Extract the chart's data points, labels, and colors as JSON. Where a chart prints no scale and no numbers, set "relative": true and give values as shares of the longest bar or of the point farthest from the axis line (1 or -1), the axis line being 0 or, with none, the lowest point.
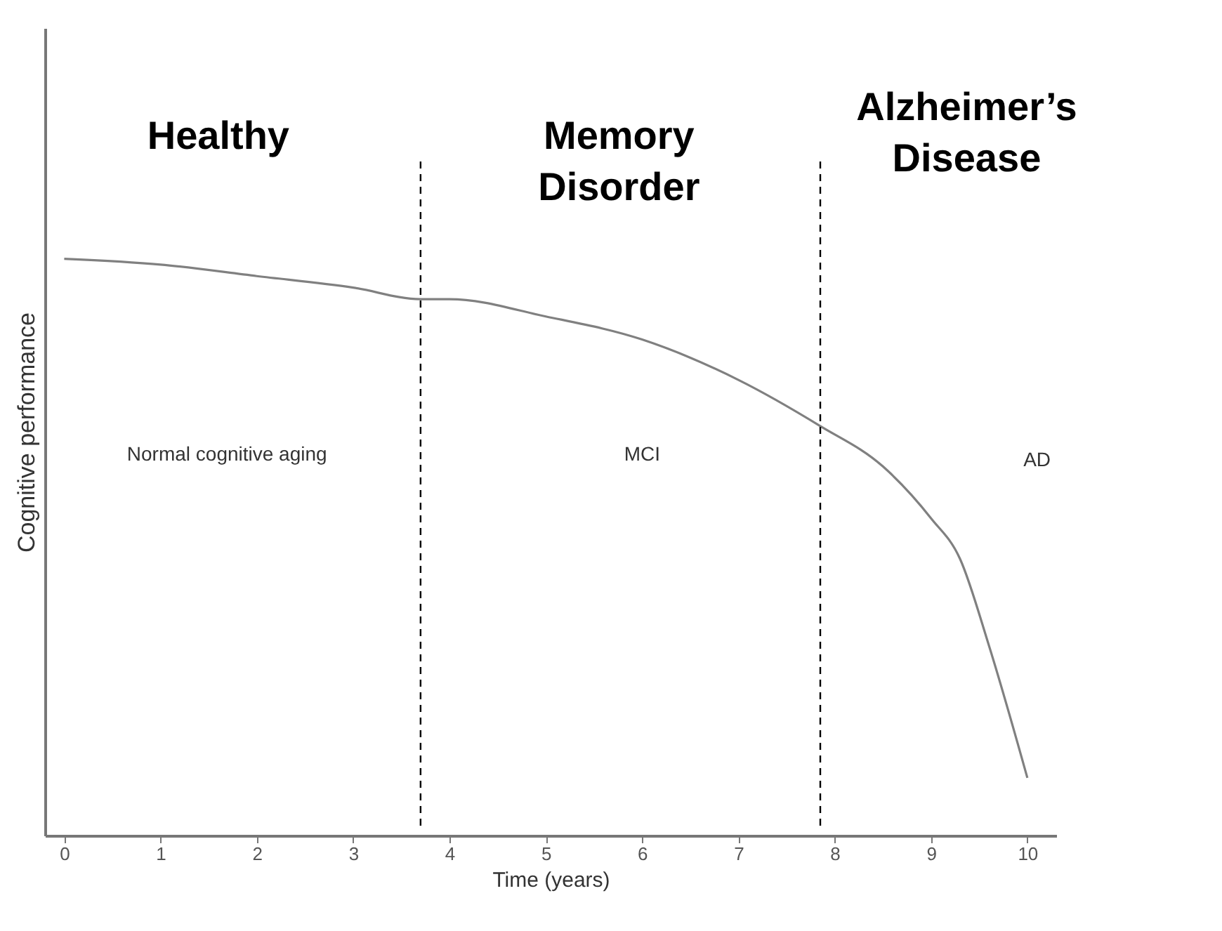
{
  "chart_data": {
    "type": "line",
    "relative": true,
    "xlabel": "Time (years)",
    "ylabel": "Cognitive performance",
    "x": [
      0,
      1,
      2,
      3,
      3.7,
      4,
      5,
      6,
      7,
      7.85,
      8.5,
      9,
      9.3,
      9.6,
      10
    ],
    "series": [
      {
        "color": "#808080",
        "values": [
          1,
          0.99,
          0.97,
          0.95,
          0.93,
          0.93,
          0.9,
          0.86,
          0.79,
          0.71,
          0.64,
          0.55,
          0.48,
          0.33,
          0.1
        ]
      }
    ],
    "xlim": [
      -0.2,
      10.3
    ],
    "xticks": [
      0,
      1,
      2,
      3,
      4,
      5,
      6,
      7,
      8,
      9,
      10
    ],
    "grid": false,
    "marker": "none",
    "line_style": "solid",
    "ref_lines": [
      {
        "axis": "x",
        "value": 3.7,
        "line_style": "dashed",
        "color": "#000000"
      },
      {
        "axis": "x",
        "value": 7.85,
        "line_style": "dashed",
        "color": "#000000"
      }
    ],
    "annotations": [
      "Healthy",
      "Memory Disorder",
      "Alzheimer’s Disease",
      "Normal cognitive aging",
      "MCI",
      "AD"
    ]
  }
}
